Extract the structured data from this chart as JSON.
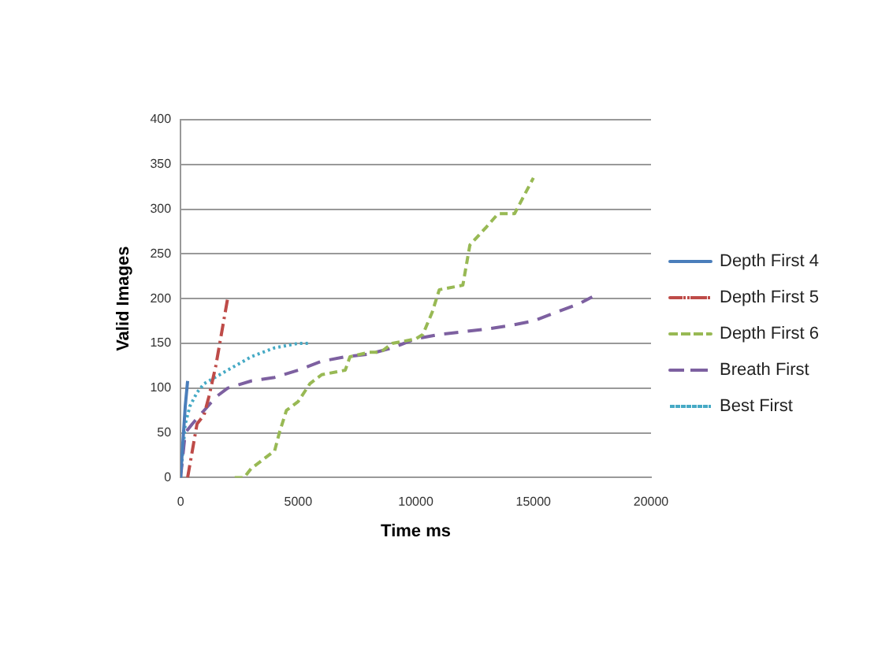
{
  "chart_data": {
    "type": "line",
    "xlabel": "Time ms",
    "ylabel": "Valid Images",
    "xlim": [
      0,
      20000
    ],
    "xticks": [
      0,
      5000,
      10000,
      15000,
      20000
    ],
    "ylim": [
      0,
      400
    ],
    "yticks": [
      0,
      50,
      100,
      150,
      200,
      250,
      300,
      350,
      400
    ],
    "grid": "y",
    "legend": "right",
    "marker": "none",
    "series": [
      {
        "name": "Depth First 4",
        "color": "#4a7ebb",
        "line_style": "solid",
        "x": [
          0,
          100,
          200,
          300
        ],
        "values": [
          0,
          40,
          80,
          108
        ]
      },
      {
        "name": "Depth First 5",
        "color": "#be4b48",
        "line_style": "dashdot",
        "x": [
          300,
          500,
          700,
          1000,
          1200,
          1500,
          1800,
          2000
        ],
        "values": [
          0,
          30,
          60,
          70,
          90,
          125,
          170,
          200
        ]
      },
      {
        "name": "Depth First 6",
        "color": "#98b954",
        "line_style": "dashed",
        "x": [
          2300,
          2700,
          3000,
          3500,
          4000,
          4200,
          4500,
          5000,
          5500,
          6000,
          7000,
          7200,
          8000,
          8500,
          9000,
          10000,
          10300,
          10700,
          11000,
          12000,
          12300,
          13000,
          13500,
          14200,
          15000
        ],
        "values": [
          0,
          0,
          10,
          20,
          30,
          50,
          75,
          85,
          105,
          115,
          120,
          135,
          140,
          140,
          150,
          155,
          160,
          185,
          210,
          215,
          260,
          280,
          295,
          295,
          335
        ]
      },
      {
        "name": "Breath First",
        "color": "#7d60a0",
        "line_style": "longdash",
        "x": [
          0,
          200,
          500,
          1000,
          1500,
          2000,
          3000,
          4000,
          5000,
          6000,
          7000,
          8000,
          9000,
          10000,
          11000,
          12000,
          13000,
          14000,
          15000,
          16000,
          17000,
          17500
        ],
        "values": [
          0,
          50,
          60,
          75,
          90,
          100,
          108,
          112,
          120,
          130,
          135,
          138,
          145,
          155,
          160,
          163,
          166,
          170,
          175,
          185,
          195,
          202
        ]
      },
      {
        "name": "Best First",
        "color": "#46aac5",
        "line_style": "dotted",
        "x": [
          0,
          200,
          400,
          700,
          1000,
          2000,
          3000,
          4000,
          5000,
          5500
        ],
        "values": [
          0,
          60,
          80,
          95,
          105,
          120,
          135,
          145,
          150,
          150
        ]
      }
    ]
  }
}
